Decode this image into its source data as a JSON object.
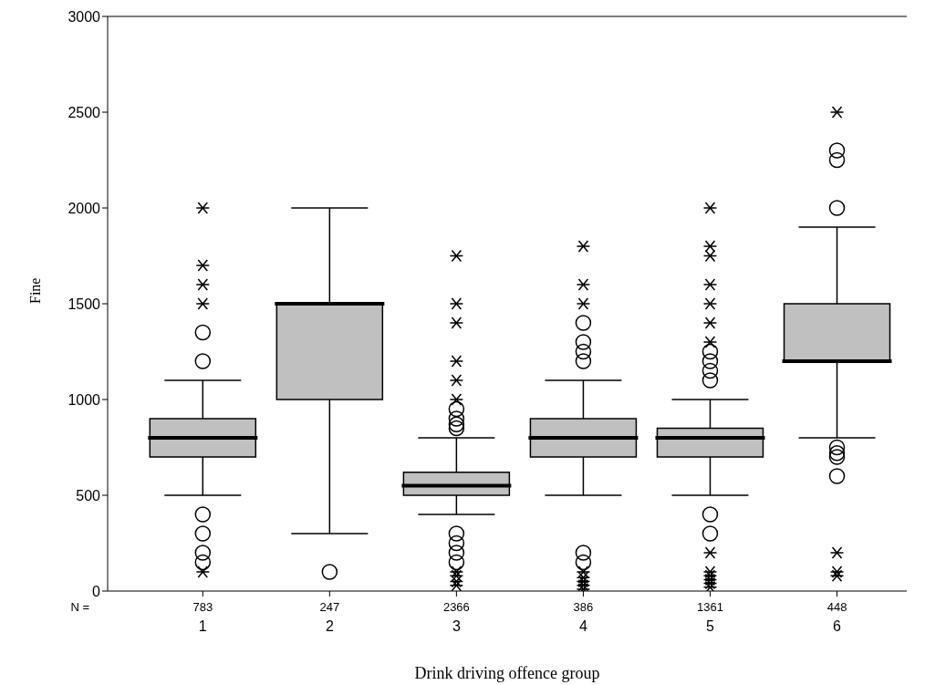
{
  "chart_data": {
    "type": "box",
    "xlabel": "Drink driving offence group",
    "ylabel": "Fine",
    "categories": [
      "1",
      "2",
      "3",
      "4",
      "5",
      "6"
    ],
    "ylim": [
      0,
      3000
    ],
    "yticks": [
      0,
      500,
      1000,
      1500,
      2000,
      2500,
      3000
    ],
    "annotations": [
      "N =",
      "783",
      "247",
      "2366",
      "386",
      "1361",
      "448"
    ],
    "series": [
      {
        "color": "#c0c0c0",
        "boxes": [
          {
            "low": 500,
            "q1": 700,
            "median": 800,
            "q3": 900,
            "high": 1100,
            "outliers": [
              1350,
              1200,
              400,
              300,
              200,
              150
            ]
          },
          {
            "low": 300,
            "q1": 1000,
            "median": 1500,
            "q3": 1500,
            "high": 2000,
            "outliers": [
              100
            ]
          },
          {
            "low": 400,
            "q1": 500,
            "median": 550,
            "q3": 620,
            "high": 800,
            "outliers": [
              950,
              900,
              870,
              850,
              300,
              250,
              200,
              150
            ]
          },
          {
            "low": 500,
            "q1": 700,
            "median": 800,
            "q3": 900,
            "high": 1100,
            "outliers": [
              1400,
              1300,
              1250,
              1200,
              200,
              150
            ]
          },
          {
            "low": 500,
            "q1": 700,
            "median": 800,
            "q3": 850,
            "high": 1000,
            "outliers": [
              1250,
              1200,
              1150,
              1100,
              400,
              300
            ]
          },
          {
            "low": 800,
            "q1": 1200,
            "median": 1200,
            "q3": 1500,
            "high": 1900,
            "outliers": [
              2300,
              2250,
              2000,
              750,
              720,
              700,
              600
            ]
          }
        ]
      },
      {
        "type": "scatter",
        "marker": "cross",
        "color": "#000000",
        "x": [
          "1",
          "1",
          "1",
          "1",
          "1",
          "3",
          "3",
          "3",
          "3",
          "3",
          "3",
          "3",
          "3",
          "3",
          "3",
          "4",
          "4",
          "4",
          "4",
          "4",
          "4",
          "4",
          "4",
          "5",
          "5",
          "5",
          "5",
          "5",
          "5",
          "5",
          "5",
          "5",
          "5",
          "5",
          "5",
          "5",
          "6",
          "6",
          "6",
          "6"
        ],
        "values": [
          2000,
          1700,
          1600,
          1500,
          100,
          1750,
          1500,
          1400,
          1200,
          1100,
          1000,
          100,
          80,
          50,
          30,
          1800,
          1600,
          1500,
          100,
          70,
          50,
          30,
          10,
          2000,
          1800,
          1750,
          1600,
          1500,
          1400,
          1300,
          200,
          100,
          80,
          60,
          40,
          20,
          2500,
          200,
          100,
          80
        ]
      }
    ]
  }
}
